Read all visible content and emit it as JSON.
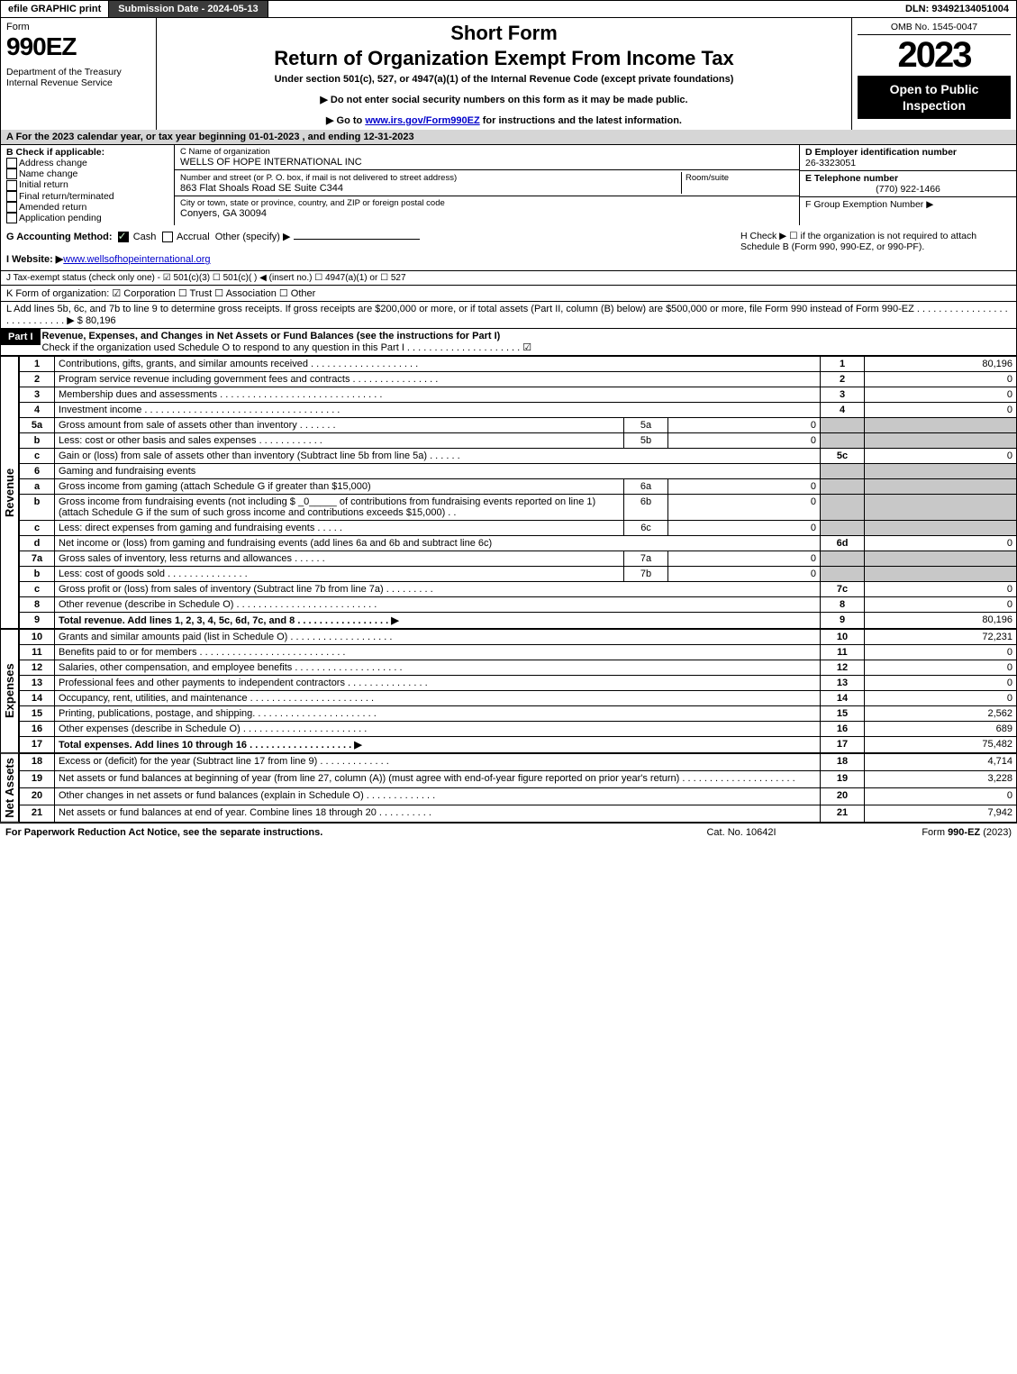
{
  "top": {
    "efile": "efile GRAPHIC print",
    "submission": "Submission Date - 2024-05-13",
    "dln": "DLN: 93492134051004"
  },
  "header": {
    "form_label": "Form",
    "form_number": "990EZ",
    "dept": "Department of the Treasury\nInternal Revenue Service",
    "short": "Short Form",
    "title": "Return of Organization Exempt From Income Tax",
    "subtitle": "Under section 501(c), 527, or 4947(a)(1) of the Internal Revenue Code (except private foundations)",
    "note1": "▶ Do not enter social security numbers on this form as it may be made public.",
    "note2_prefix": "▶ Go to ",
    "note2_link": "www.irs.gov/Form990EZ",
    "note2_suffix": " for instructions and the latest information.",
    "omb": "OMB No. 1545-0047",
    "year": "2023",
    "open": "Open to Public Inspection"
  },
  "sectionA": "A  For the 2023 calendar year, or tax year beginning 01-01-2023 , and ending 12-31-2023",
  "boxB": {
    "label": "B  Check if applicable:",
    "opts": [
      "Address change",
      "Name change",
      "Initial return",
      "Final return/terminated",
      "Amended return",
      "Application pending"
    ]
  },
  "boxC": {
    "name_label": "C Name of organization",
    "name": "WELLS OF HOPE INTERNATIONAL INC",
    "street_label": "Number and street (or P. O. box, if mail is not delivered to street address)",
    "room_label": "Room/suite",
    "street": "863 Flat Shoals Road SE Suite C344",
    "city_label": "City or town, state or province, country, and ZIP or foreign postal code",
    "city": "Conyers, GA  30094"
  },
  "boxD": {
    "label": "D Employer identification number",
    "value": "26-3323051"
  },
  "boxE": {
    "label": "E Telephone number",
    "value": "(770) 922-1466"
  },
  "boxF": {
    "label": "F Group Exemption Number  ▶",
    "value": ""
  },
  "rowG": {
    "label": "G Accounting Method:",
    "cash": "Cash",
    "accrual": "Accrual",
    "other": "Other (specify) ▶"
  },
  "rowH": "H  Check ▶  ☐  if the organization is not required to attach Schedule B (Form 990, 990-EZ, or 990-PF).",
  "rowI": {
    "label": "I Website: ▶",
    "value": "www.wellsofhopeinternational.org"
  },
  "rowJ": "J Tax-exempt status (check only one) - ☑ 501(c)(3)  ☐ 501(c)(  ) ◀ (insert no.)  ☐ 4947(a)(1) or  ☐ 527",
  "rowK": "K Form of organization:  ☑ Corporation  ☐ Trust  ☐ Association  ☐ Other",
  "rowL": {
    "text": "L Add lines 5b, 6c, and 7b to line 9 to determine gross receipts. If gross receipts are $200,000 or more, or if total assets (Part II, column (B) below) are $500,000 or more, file Form 990 instead of Form 990-EZ .  .  .  .  .  .  .  .  .  .  .  .  .  .  .  .  .  .  .  .  .  .  .  .  .  .  .  .  ▶ $",
    "value": "80,196"
  },
  "part1": {
    "header": "Part I",
    "title": "Revenue, Expenses, and Changes in Net Assets or Fund Balances (see the instructions for Part I)",
    "check": "Check if the organization used Schedule O to respond to any question in this Part I .  .  .  .  .  .  .  .  .  .  .  .  .  .  .  .  .  .  .  .  .  ☑"
  },
  "sections": {
    "revenue": "Revenue",
    "expenses": "Expenses",
    "netassets": "Net Assets"
  },
  "lines": [
    {
      "n": "1",
      "desc": "Contributions, gifts, grants, and similar amounts received .  .  .  .  .  .  .  .  .  .  .  .  .  .  .  .  .  .  .  .",
      "col": "1",
      "val": "80,196"
    },
    {
      "n": "2",
      "desc": "Program service revenue including government fees and contracts .  .  .  .  .  .  .  .  .  .  .  .  .  .  .  .",
      "col": "2",
      "val": "0"
    },
    {
      "n": "3",
      "desc": "Membership dues and assessments .  .  .  .  .  .  .  .  .  .  .  .  .  .  .  .  .  .  .  .  .  .  .  .  .  .  .  .  .  .",
      "col": "3",
      "val": "0"
    },
    {
      "n": "4",
      "desc": "Investment income .  .  .  .  .  .  .  .  .  .  .  .  .  .  .  .  .  .  .  .  .  .  .  .  .  .  .  .  .  .  .  .  .  .  .  .",
      "col": "4",
      "val": "0"
    },
    {
      "n": "5a",
      "desc": "Gross amount from sale of assets other than inventory .  .  .  .  .  .  .",
      "sub": "5a",
      "subval": "0",
      "shade": true
    },
    {
      "n": "b",
      "desc": "Less: cost or other basis and sales expenses .  .  .  .  .  .  .  .  .  .  .  .",
      "sub": "5b",
      "subval": "0",
      "shade": true
    },
    {
      "n": "c",
      "desc": "Gain or (loss) from sale of assets other than inventory (Subtract line 5b from line 5a) .  .  .  .  .  .",
      "col": "5c",
      "val": "0"
    },
    {
      "n": "6",
      "desc": "Gaming and fundraising events",
      "shade": true,
      "noval": true
    },
    {
      "n": "a",
      "desc": "Gross income from gaming (attach Schedule G if greater than $15,000)",
      "sub": "6a",
      "subval": "0",
      "shade": true
    },
    {
      "n": "b",
      "desc": "Gross income from fundraising events (not including $ _0_____ of contributions from fundraising events reported on line 1) (attach Schedule G if the sum of such gross income and contributions exceeds $15,000)  .  .",
      "sub": "6b",
      "subval": "0",
      "shade": true
    },
    {
      "n": "c",
      "desc": "Less: direct expenses from gaming and fundraising events  .  .  .  .  .",
      "sub": "6c",
      "subval": "0",
      "shade": true
    },
    {
      "n": "d",
      "desc": "Net income or (loss) from gaming and fundraising events (add lines 6a and 6b and subtract line 6c)",
      "col": "6d",
      "val": "0"
    },
    {
      "n": "7a",
      "desc": "Gross sales of inventory, less returns and allowances .  .  .  .  .  .",
      "sub": "7a",
      "subval": "0",
      "shade": true
    },
    {
      "n": "b",
      "desc": "Less: cost of goods sold    .  .  .  .  .  .  .  .  .  .  .  .  .  .  .",
      "sub": "7b",
      "subval": "0",
      "shade": true
    },
    {
      "n": "c",
      "desc": "Gross profit or (loss) from sales of inventory (Subtract line 7b from line 7a) .  .  .  .  .  .  .  .  .",
      "col": "7c",
      "val": "0"
    },
    {
      "n": "8",
      "desc": "Other revenue (describe in Schedule O) .  .  .  .  .  .  .  .  .  .  .  .  .  .  .  .  .  .  .  .  .  .  .  .  .  .",
      "col": "8",
      "val": "0"
    },
    {
      "n": "9",
      "desc": "Total revenue. Add lines 1, 2, 3, 4, 5c, 6d, 7c, and 8  .  .  .  .  .  .  .  .  .  .  .  .  .  .  .  .  .  ▶",
      "col": "9",
      "val": "80,196",
      "bold": true
    }
  ],
  "expenses_lines": [
    {
      "n": "10",
      "desc": "Grants and similar amounts paid (list in Schedule O) .  .  .  .  .  .  .  .  .  .  .  .  .  .  .  .  .  .  .",
      "col": "10",
      "val": "72,231"
    },
    {
      "n": "11",
      "desc": "Benefits paid to or for members   .  .  .  .  .  .  .  .  .  .  .  .  .  .  .  .  .  .  .  .  .  .  .  .  .  .  .",
      "col": "11",
      "val": "0"
    },
    {
      "n": "12",
      "desc": "Salaries, other compensation, and employee benefits .  .  .  .  .  .  .  .  .  .  .  .  .  .  .  .  .  .  .  .",
      "col": "12",
      "val": "0"
    },
    {
      "n": "13",
      "desc": "Professional fees and other payments to independent contractors .  .  .  .  .  .  .  .  .  .  .  .  .  .  .",
      "col": "13",
      "val": "0"
    },
    {
      "n": "14",
      "desc": "Occupancy, rent, utilities, and maintenance .  .  .  .  .  .  .  .  .  .  .  .  .  .  .  .  .  .  .  .  .  .  .",
      "col": "14",
      "val": "0"
    },
    {
      "n": "15",
      "desc": "Printing, publications, postage, and shipping. .  .  .  .  .  .  .  .  .  .  .  .  .  .  .  .  .  .  .  .  .  .",
      "col": "15",
      "val": "2,562"
    },
    {
      "n": "16",
      "desc": "Other expenses (describe in Schedule O)   .  .  .  .  .  .  .  .  .  .  .  .  .  .  .  .  .  .  .  .  .  .  .",
      "col": "16",
      "val": "689"
    },
    {
      "n": "17",
      "desc": "Total expenses. Add lines 10 through 16   .  .  .  .  .  .  .  .  .  .  .  .  .  .  .  .  .  .  .  ▶",
      "col": "17",
      "val": "75,482",
      "bold": true
    }
  ],
  "netassets_lines": [
    {
      "n": "18",
      "desc": "Excess or (deficit) for the year (Subtract line 17 from line 9)    .  .  .  .  .  .  .  .  .  .  .  .  .",
      "col": "18",
      "val": "4,714"
    },
    {
      "n": "19",
      "desc": "Net assets or fund balances at beginning of year (from line 27, column (A)) (must agree with end-of-year figure reported on prior year's return) .  .  .  .  .  .  .  .  .  .  .  .  .  .  .  .  .  .  .  .  .",
      "col": "19",
      "val": "3,228"
    },
    {
      "n": "20",
      "desc": "Other changes in net assets or fund balances (explain in Schedule O) .  .  .  .  .  .  .  .  .  .  .  .  .",
      "col": "20",
      "val": "0"
    },
    {
      "n": "21",
      "desc": "Net assets or fund balances at end of year. Combine lines 18 through 20 .  .  .  .  .  .  .  .  .  .",
      "col": "21",
      "val": "7,942"
    }
  ],
  "footer": {
    "left": "For Paperwork Reduction Act Notice, see the separate instructions.",
    "center": "Cat. No. 10642I",
    "right_prefix": "Form ",
    "right_bold": "990-EZ",
    "right_suffix": " (2023)"
  }
}
